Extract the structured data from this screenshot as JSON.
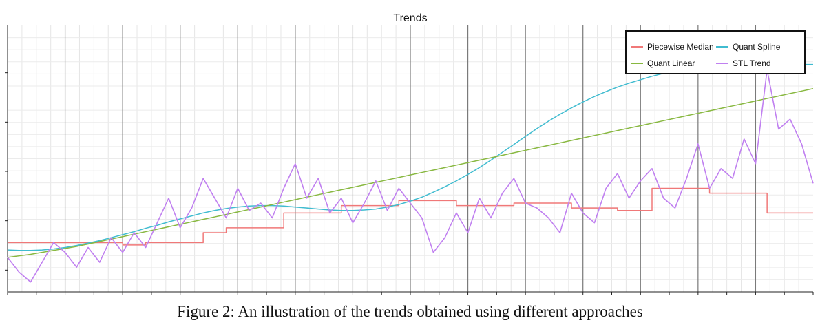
{
  "caption": "Figure 2: An illustration of the trends obtained using different approaches",
  "chart_data": {
    "type": "line",
    "title": "Trends",
    "xlabel": "",
    "ylabel": "",
    "x": [
      0,
      2,
      4,
      6,
      8,
      10,
      12,
      14,
      16,
      18,
      20,
      22,
      24,
      26,
      28,
      30,
      32,
      34,
      36,
      38,
      40,
      42,
      44,
      46,
      48,
      50,
      52,
      54,
      56,
      58,
      60,
      62,
      64,
      66,
      68,
      70,
      72,
      74,
      76,
      78,
      80,
      82,
      84,
      86,
      88,
      90,
      92,
      94,
      96,
      98,
      100,
      102,
      104,
      106,
      108,
      110,
      112,
      114,
      116,
      118,
      120,
      122,
      124,
      126,
      128,
      130,
      132,
      134,
      136,
      138,
      140
    ],
    "xlim": [
      0,
      140
    ],
    "ylim": [
      0,
      540
    ],
    "grid": true,
    "legend": "top-right",
    "series": [
      {
        "name": "Piecewise Median",
        "color": "#f07878",
        "values": [
          100,
          100,
          100,
          100,
          100,
          100,
          100,
          100,
          100,
          100,
          95,
          95,
          100,
          100,
          100,
          100,
          100,
          120,
          120,
          130,
          130,
          130,
          130,
          130,
          160,
          160,
          160,
          160,
          160,
          175,
          175,
          175,
          175,
          175,
          185,
          185,
          185,
          185,
          185,
          175,
          175,
          175,
          175,
          175,
          180,
          180,
          180,
          180,
          180,
          170,
          170,
          170,
          170,
          165,
          165,
          165,
          210,
          210,
          210,
          210,
          210,
          200,
          200,
          200,
          200,
          200,
          160,
          160,
          160,
          160,
          160
        ]
      },
      {
        "name": "Quant Spline",
        "color": "#40bcd0",
        "values": [
          85,
          84,
          84,
          85,
          87,
          90,
          94,
          99,
          104,
          110,
          116,
          122,
          129,
          135,
          142,
          148,
          154,
          160,
          165,
          169,
          172,
          174,
          175,
          175,
          174,
          172,
          170,
          168,
          166,
          165,
          165,
          166,
          168,
          172,
          177,
          184,
          192,
          202,
          213,
          225,
          238,
          252,
          267,
          283,
          299,
          315,
          331,
          346,
          360,
          373,
          385,
          396,
          406,
          415,
          423,
          430,
          437,
          443,
          448,
          452,
          455,
          457,
          458,
          459,
          460,
          461,
          461,
          461,
          461,
          461,
          461
        ]
      },
      {
        "name": "Quant Linear",
        "color": "#88b840",
        "values": [
          70,
          73,
          76,
          80,
          84,
          88,
          92,
          97,
          102,
          107,
          112,
          117,
          122,
          127,
          132,
          137,
          142,
          147,
          152,
          157,
          162,
          167,
          172,
          177,
          182,
          187,
          192,
          197,
          202,
          207,
          212,
          217,
          222,
          227,
          232,
          237,
          242,
          247,
          252,
          257,
          262,
          267,
          272,
          277,
          282,
          287,
          292,
          297,
          302,
          307,
          312,
          317,
          322,
          327,
          332,
          337,
          342,
          347,
          352,
          357,
          362,
          367,
          372,
          377,
          382,
          387,
          392,
          397,
          402,
          407,
          412
        ]
      },
      {
        "name": "STL Trend",
        "color": "#c080f0",
        "values": [
          70,
          40,
          20,
          60,
          100,
          80,
          50,
          90,
          60,
          110,
          80,
          120,
          90,
          140,
          190,
          130,
          170,
          230,
          190,
          150,
          210,
          165,
          180,
          150,
          210,
          260,
          190,
          230,
          160,
          190,
          140,
          180,
          225,
          165,
          210,
          180,
          150,
          80,
          110,
          160,
          120,
          190,
          150,
          200,
          230,
          180,
          170,
          150,
          120,
          200,
          160,
          140,
          210,
          240,
          190,
          225,
          250,
          190,
          170,
          230,
          300,
          210,
          250,
          230,
          310,
          260,
          450,
          330,
          350,
          300,
          220
        ]
      }
    ]
  },
  "legend_items": [
    "Piecewise Median",
    "Quant Spline",
    "Quant Linear",
    "STL Trend"
  ]
}
